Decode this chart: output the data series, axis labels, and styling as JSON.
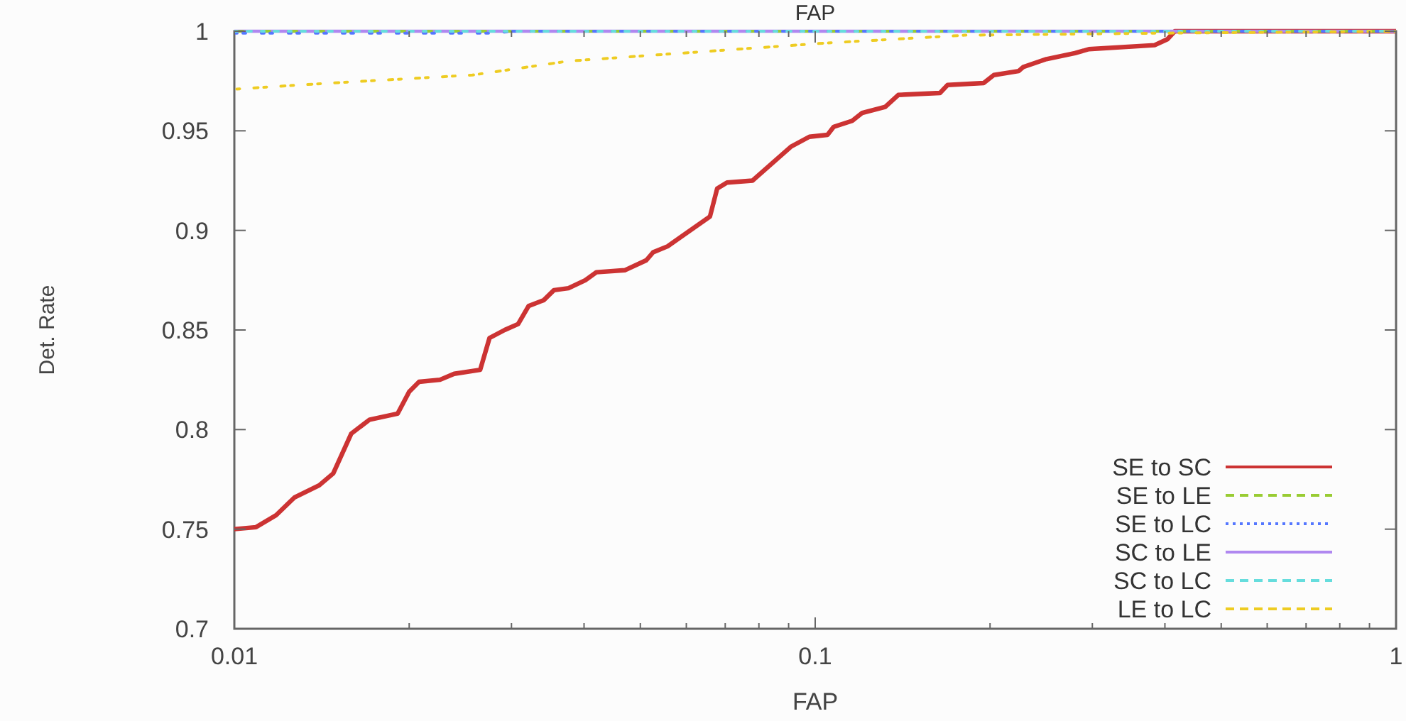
{
  "chart_data": {
    "type": "line",
    "title": "FAP",
    "xlabel": "FAP",
    "ylabel": "Det. Rate",
    "log": "x",
    "xlim": [
      0.01,
      1
    ],
    "ylim": [
      0.7,
      1
    ],
    "xticks": [
      0.01,
      {
        "value": 0.02,
        "label": null
      },
      {
        "value": 0.03,
        "label": null
      },
      {
        "value": 0.04,
        "label": null
      },
      {
        "value": 0.05,
        "label": null
      },
      {
        "value": 0.06,
        "label": null
      },
      {
        "value": 0.07,
        "label": null
      },
      {
        "value": 0.08,
        "label": null
      },
      {
        "value": 0.09,
        "label": null
      },
      0.1,
      {
        "value": 0.2,
        "label": null
      },
      {
        "value": 0.3,
        "label": null
      },
      {
        "value": 0.4,
        "label": null
      },
      {
        "value": 0.5,
        "label": null
      },
      {
        "value": 0.6,
        "label": null
      },
      {
        "value": 0.7,
        "label": null
      },
      {
        "value": 0.8,
        "label": null
      },
      {
        "value": 0.9,
        "label": null
      },
      1
    ],
    "yticks": [
      0.7,
      0.75,
      0.8,
      0.85,
      0.9,
      0.95,
      1
    ],
    "grid": false,
    "legend": "bottom right",
    "marker": "none",
    "series": [
      {
        "name": "SE to SC",
        "color": "#cc3333",
        "line_style": "solid",
        "x": [
          0.01,
          0.0109,
          0.0118,
          0.0127,
          0.014,
          0.0148,
          0.0159,
          0.0171,
          0.0191,
          0.02,
          0.0208,
          0.0226,
          0.0239,
          0.0265,
          0.0275,
          0.0292,
          0.0308,
          0.0321,
          0.0341,
          0.0355,
          0.0376,
          0.0402,
          0.042,
          0.047,
          0.0512,
          0.0526,
          0.0557,
          0.0589,
          0.0659,
          0.0678,
          0.0705,
          0.078,
          0.0908,
          0.0977,
          0.105,
          0.1076,
          0.1158,
          0.1205,
          0.132,
          0.139,
          0.164,
          0.169,
          0.195,
          0.203,
          0.224,
          0.228,
          0.25,
          0.28,
          0.296,
          0.384,
          0.404,
          0.416,
          1
        ],
        "values": [
          0.75,
          0.751,
          0.757,
          0.766,
          0.772,
          0.778,
          0.798,
          0.805,
          0.808,
          0.819,
          0.824,
          0.825,
          0.828,
          0.83,
          0.846,
          0.85,
          0.853,
          0.862,
          0.865,
          0.87,
          0.871,
          0.875,
          0.879,
          0.88,
          0.885,
          0.889,
          0.892,
          0.897,
          0.907,
          0.921,
          0.924,
          0.925,
          0.942,
          0.947,
          0.948,
          0.952,
          0.955,
          0.959,
          0.962,
          0.968,
          0.969,
          0.973,
          0.974,
          0.978,
          0.98,
          0.982,
          0.986,
          0.989,
          0.991,
          0.993,
          0.996,
          1,
          1
        ]
      },
      {
        "name": "SE to LE",
        "color": "#99cc33",
        "line_style": "dashed",
        "x": [
          0.01,
          1
        ],
        "values": [
          1,
          1
        ]
      },
      {
        "name": "SE to LC",
        "color": "#5577ff",
        "line_style": "dotted",
        "x": [
          0.01,
          0.028,
          0.03,
          1
        ],
        "values": [
          0.999,
          0.999,
          1,
          1
        ]
      },
      {
        "name": "SC to LE",
        "color": "#b088f0",
        "line_style": "solid",
        "x": [
          0.01,
          1
        ],
        "values": [
          1,
          1
        ]
      },
      {
        "name": "SC to LC",
        "color": "#66dddd",
        "line_style": "dashed",
        "x": [
          0.01,
          1
        ],
        "values": [
          1,
          1
        ]
      },
      {
        "name": "LE to LC",
        "color": "#eecc22",
        "line_style": "dashed",
        "x": [
          0.0101,
          0.0147,
          0.0257,
          0.0376,
          0.0589,
          0.1035,
          0.181,
          0.384,
          1
        ],
        "values": [
          0.971,
          0.974,
          0.978,
          0.985,
          0.989,
          0.994,
          0.998,
          0.999,
          1
        ]
      }
    ]
  }
}
